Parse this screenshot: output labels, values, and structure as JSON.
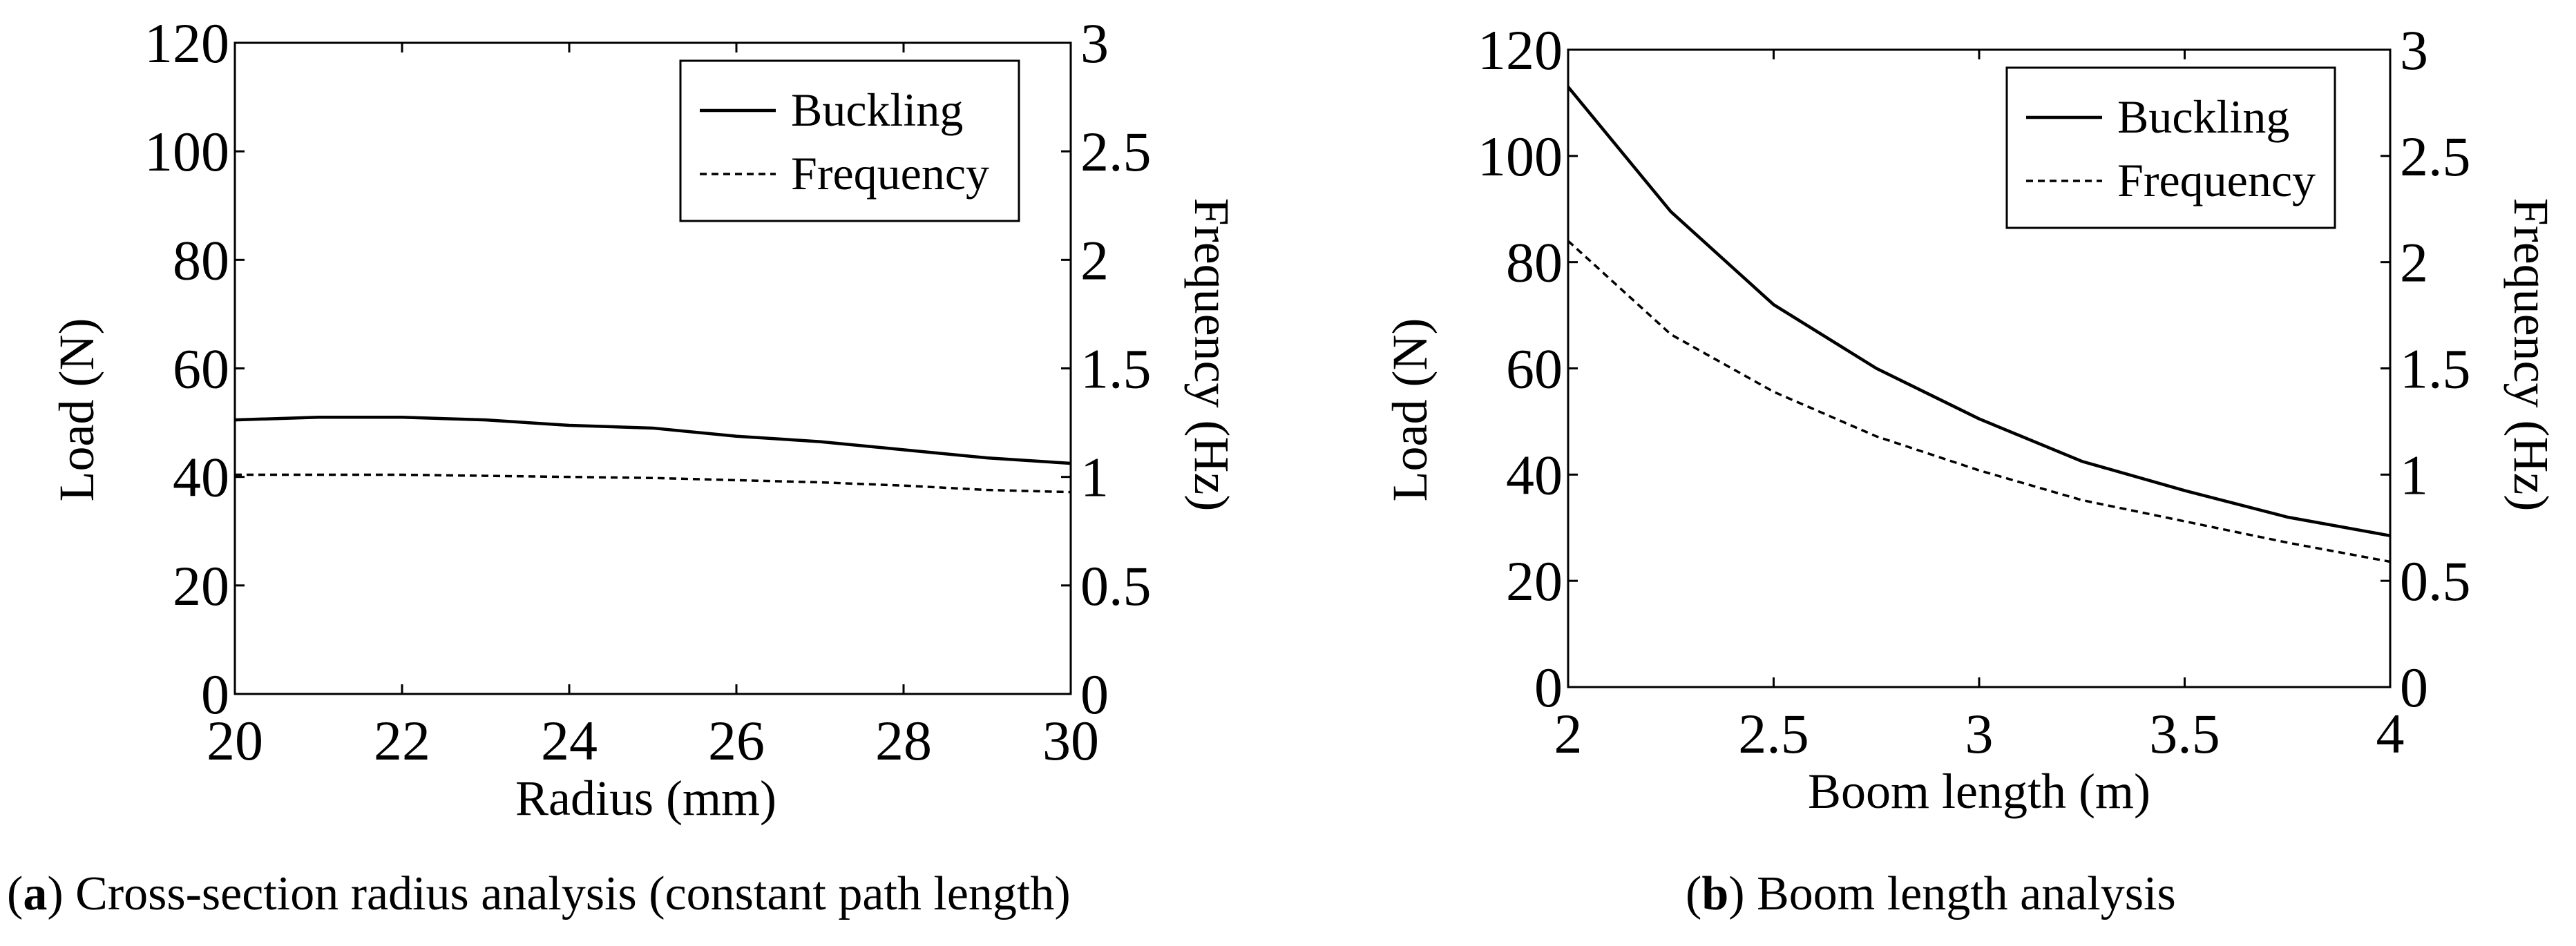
{
  "chart_data": [
    {
      "type": "line",
      "panel_label": "a",
      "caption": "Cross-section radius analysis (constant path length)",
      "xlabel": "Radius (mm)",
      "ylabel": "Load (N)",
      "y2label": "Frequency (Hz)",
      "xlim": [
        20,
        30
      ],
      "ylim": [
        0,
        120
      ],
      "y2lim": [
        0,
        3
      ],
      "xticks": [
        "20",
        "22",
        "24",
        "26",
        "28",
        "30"
      ],
      "yticks": [
        "0",
        "20",
        "40",
        "60",
        "80",
        "100",
        "120"
      ],
      "y2ticks": [
        "0",
        "0.5",
        "1",
        "1.5",
        "2",
        "2.5",
        "3"
      ],
      "legend_position": "top-right",
      "series": [
        {
          "name": "Buckling",
          "axis": "left",
          "style": "solid",
          "x": [
            20,
            21,
            22,
            23,
            24,
            25,
            26,
            27,
            28,
            29,
            30
          ],
          "y": [
            50.5,
            51,
            51,
            50.5,
            49.5,
            49,
            47.5,
            46.5,
            45,
            43.5,
            42.5
          ]
        },
        {
          "name": "Frequency",
          "axis": "right",
          "style": "dashed",
          "x": [
            20,
            21,
            22,
            23,
            24,
            25,
            26,
            27,
            28,
            29,
            30
          ],
          "y": [
            1.01,
            1.01,
            1.01,
            1.005,
            1.0,
            0.995,
            0.985,
            0.975,
            0.96,
            0.94,
            0.93
          ]
        }
      ]
    },
    {
      "type": "line",
      "panel_label": "b",
      "caption": "Boom length analysis",
      "xlabel": "Boom length (m)",
      "ylabel": "Load (N)",
      "y2label": "Frequency (Hz)",
      "xlim": [
        2,
        4
      ],
      "ylim": [
        0,
        120
      ],
      "y2lim": [
        0,
        3
      ],
      "xticks": [
        "2",
        "2.5",
        "3",
        "3.5",
        "4"
      ],
      "yticks": [
        "0",
        "20",
        "40",
        "60",
        "80",
        "100",
        "120"
      ],
      "y2ticks": [
        "0",
        "0.5",
        "1",
        "1.5",
        "2",
        "2.5",
        "3"
      ],
      "legend_position": "top-right",
      "series": [
        {
          "name": "Buckling",
          "axis": "left",
          "style": "solid",
          "x": [
            2,
            2.25,
            2.5,
            2.75,
            3,
            3.25,
            3.5,
            3.75,
            4
          ],
          "y": [
            113,
            89.5,
            72,
            60,
            50.5,
            42.5,
            37,
            32,
            28.5
          ]
        },
        {
          "name": "Frequency",
          "axis": "right",
          "style": "dashed",
          "x": [
            2,
            2.25,
            2.5,
            2.75,
            3,
            3.25,
            3.5,
            3.75,
            4
          ],
          "y": [
            2.1,
            1.66,
            1.39,
            1.18,
            1.02,
            0.88,
            0.78,
            0.68,
            0.59
          ]
        }
      ]
    }
  ]
}
